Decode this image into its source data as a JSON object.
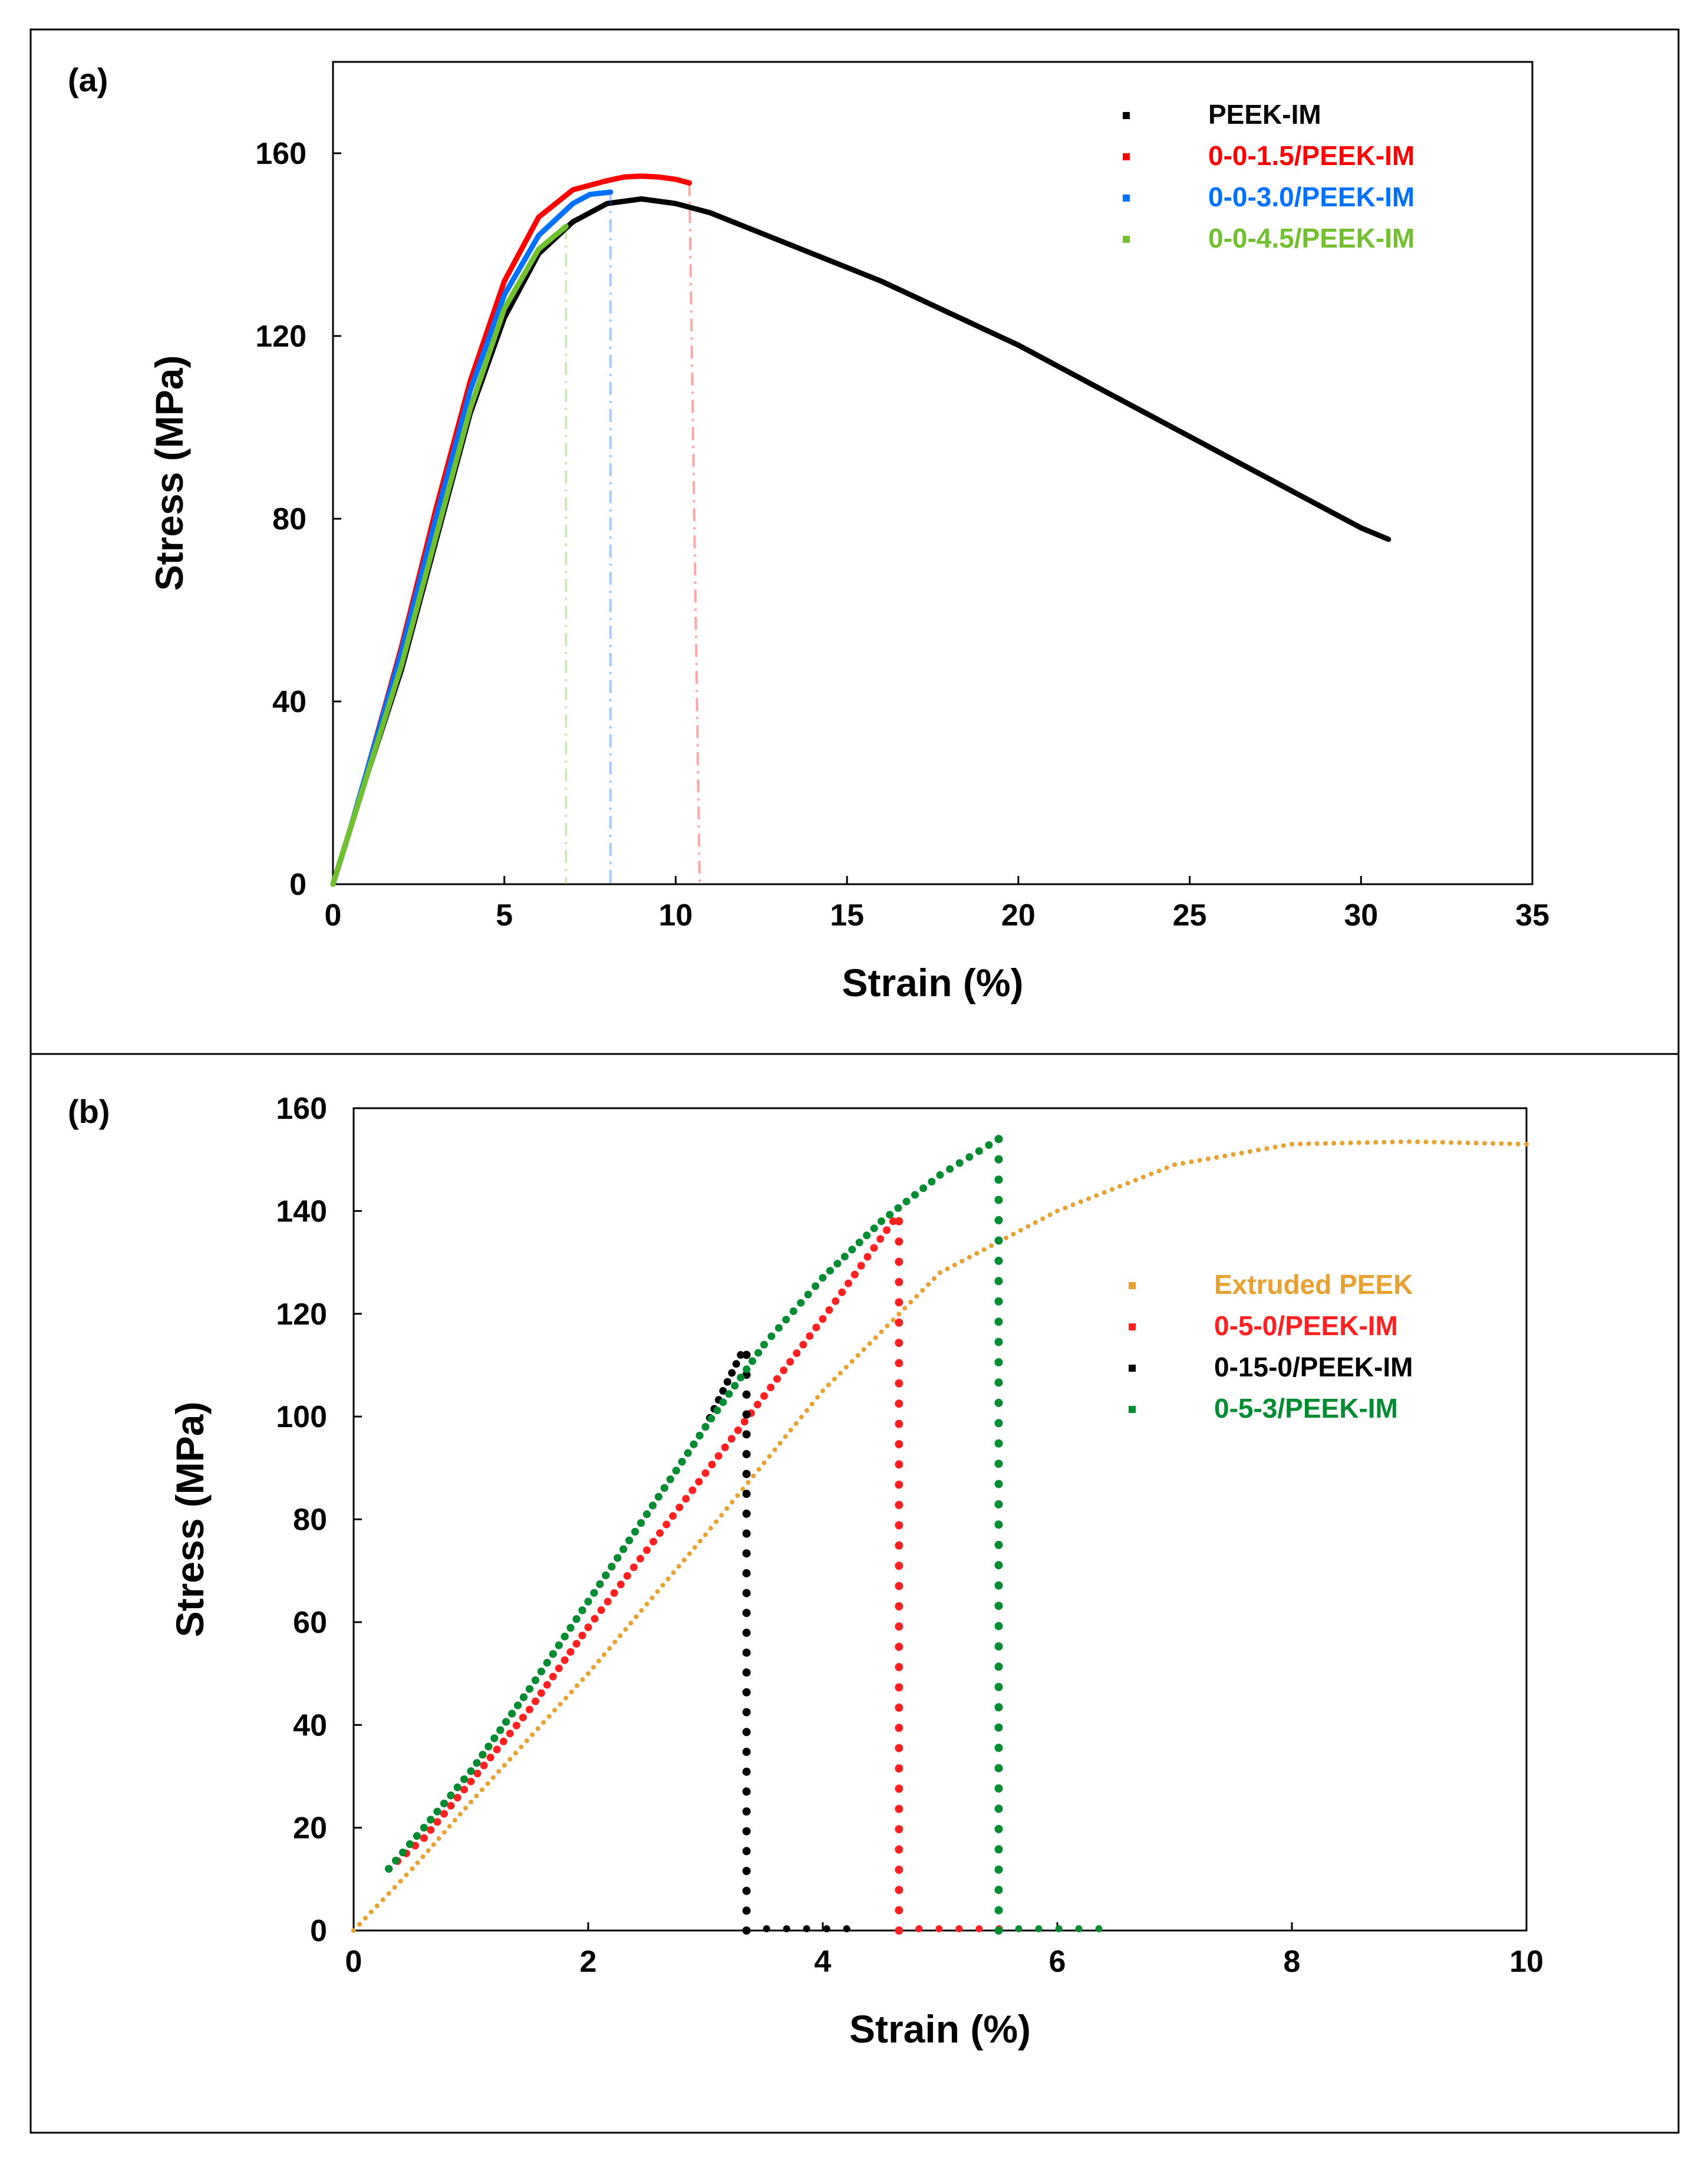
{
  "chart_data": [
    {
      "type": "line",
      "panel_label": "(a)",
      "xlabel": "Strain (%)",
      "ylabel": "Stress (MPa)",
      "xlim": [
        0,
        35
      ],
      "ylim": [
        0,
        180
      ],
      "xticks": [
        0,
        5,
        10,
        15,
        20,
        25,
        30,
        35
      ],
      "yticks": [
        0,
        40,
        80,
        120,
        160
      ],
      "grid": false,
      "legend_position": "top-right",
      "series": [
        {
          "name": "PEEK-IM",
          "color": "#000000",
          "break_strain": null,
          "points": [
            [
              0,
              0
            ],
            [
              0.5,
              12
            ],
            [
              1,
              24
            ],
            [
              2,
              47
            ],
            [
              3,
              75
            ],
            [
              4,
              103
            ],
            [
              5,
              124
            ],
            [
              6,
              138
            ],
            [
              7,
              145
            ],
            [
              8,
              149
            ],
            [
              9,
              150
            ],
            [
              10,
              149
            ],
            [
              11,
              147
            ],
            [
              12,
              144
            ],
            [
              14,
              138
            ],
            [
              16,
              132
            ],
            [
              18,
              125
            ],
            [
              20,
              118
            ],
            [
              22,
              110
            ],
            [
              24,
              102
            ],
            [
              26,
              94
            ],
            [
              28,
              86
            ],
            [
              30,
              78
            ],
            [
              30.8,
              75.5
            ]
          ]
        },
        {
          "name": "0-0-1.5/PEEK-IM",
          "color": "#ff0000",
          "break_strain": 10.7,
          "points": [
            [
              0,
              0
            ],
            [
              0.5,
              12
            ],
            [
              1,
              25
            ],
            [
              2,
              52
            ],
            [
              3,
              82
            ],
            [
              4,
              110
            ],
            [
              5,
              132
            ],
            [
              6,
              146
            ],
            [
              7,
              152
            ],
            [
              8,
              154
            ],
            [
              8.5,
              154.8
            ],
            [
              9,
              155
            ],
            [
              9.5,
              154.8
            ],
            [
              10,
              154.3
            ],
            [
              10.4,
              153.5
            ]
          ]
        },
        {
          "name": "0-0-3.0/PEEK-IM",
          "color": "#0070ff",
          "break_strain": 8.1,
          "points": [
            [
              0,
              0
            ],
            [
              0.5,
              12
            ],
            [
              1,
              25
            ],
            [
              2,
              51
            ],
            [
              3,
              80
            ],
            [
              4,
              108
            ],
            [
              5,
              129
            ],
            [
              6,
              142
            ],
            [
              7,
              149
            ],
            [
              7.5,
              151
            ],
            [
              8.1,
              151.5
            ]
          ]
        },
        {
          "name": "0-0-4.5/PEEK-IM",
          "color": "#70c030",
          "break_strain": 6.8,
          "points": [
            [
              0,
              0
            ],
            [
              0.5,
              12
            ],
            [
              1,
              24
            ],
            [
              2,
              48
            ],
            [
              3,
              76
            ],
            [
              4,
              104
            ],
            [
              5,
              126
            ],
            [
              6,
              139
            ],
            [
              6.8,
              144
            ]
          ]
        }
      ]
    },
    {
      "type": "scatter",
      "panel_label": "(b)",
      "xlabel": "Strain (%)",
      "ylabel": "Stress (MPa)",
      "xlim": [
        0,
        10
      ],
      "ylim": [
        0,
        160
      ],
      "xticks": [
        0,
        2,
        4,
        6,
        8,
        10
      ],
      "yticks": [
        0,
        20,
        40,
        60,
        80,
        100,
        120,
        140,
        160
      ],
      "grid": false,
      "legend_position": "center-right",
      "series": [
        {
          "name": "Extruded PEEK",
          "color": "#e8a030",
          "break_strain": null,
          "points": [
            [
              0,
              0
            ],
            [
              0.5,
              12
            ],
            [
              1,
              25
            ],
            [
              2,
              50
            ],
            [
              3,
              77
            ],
            [
              4,
              105
            ],
            [
              5,
              128
            ],
            [
              6,
              140
            ],
            [
              7,
              149
            ],
            [
              8,
              153
            ],
            [
              9,
              153.5
            ],
            [
              10,
              153
            ]
          ]
        },
        {
          "name": "0-5-0/PEEK-IM",
          "color": "#ff2020",
          "break_strain": 4.65,
          "points": [
            [
              0.3,
              12
            ],
            [
              0.6,
              18
            ],
            [
              1,
              29
            ],
            [
              1.5,
              43
            ],
            [
              2,
              59
            ],
            [
              2.5,
              74
            ],
            [
              3,
              89
            ],
            [
              3.5,
              104
            ],
            [
              4,
              119
            ],
            [
              4.6,
              138
            ]
          ]
        },
        {
          "name": "0-15-0/PEEK-IM",
          "color": "#000000",
          "break_strain": 3.35,
          "points": [
            [
              0.3,
              12
            ],
            [
              0.6,
              20
            ],
            [
              1,
              31
            ],
            [
              1.5,
              47
            ],
            [
              2,
              64
            ],
            [
              2.5,
              81
            ],
            [
              3,
              98
            ],
            [
              3.3,
              112
            ]
          ]
        },
        {
          "name": "0-5-3/PEEK-IM",
          "color": "#008c30",
          "break_strain": 5.5,
          "points": [
            [
              0.3,
              12
            ],
            [
              0.6,
              20
            ],
            [
              1,
              31
            ],
            [
              1.5,
              47
            ],
            [
              2,
              64
            ],
            [
              2.5,
              81
            ],
            [
              3,
              98
            ],
            [
              3.5,
              114
            ],
            [
              4,
              127
            ],
            [
              4.5,
              138
            ],
            [
              5,
              147
            ],
            [
              5.5,
              154
            ]
          ]
        }
      ]
    }
  ]
}
